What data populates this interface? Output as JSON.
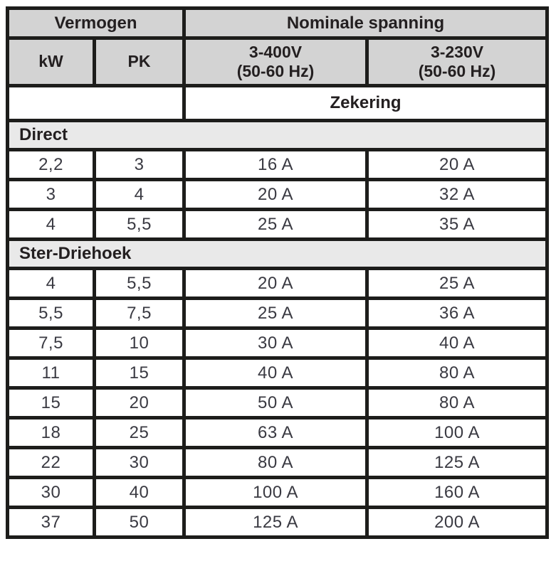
{
  "table": {
    "header": {
      "power_group": "Vermogen",
      "voltage_group": "Nominale spanning",
      "col_kw": "kW",
      "col_pk": "PK",
      "col_400v_line1": "3-400V",
      "col_400v_line2": "(50-60 Hz)",
      "col_230v_line1": "3-230V",
      "col_230v_line2": "(50-60 Hz)",
      "fuse_label": "Zekering"
    },
    "sections": [
      {
        "label": "Direct",
        "rows": [
          {
            "kw": "2,2",
            "pk": "3",
            "fuse_400v": "16 A",
            "fuse_230v": "20 A"
          },
          {
            "kw": "3",
            "pk": "4",
            "fuse_400v": "20 A",
            "fuse_230v": "32 A"
          },
          {
            "kw": "4",
            "pk": "5,5",
            "fuse_400v": "25 A",
            "fuse_230v": "35 A"
          }
        ]
      },
      {
        "label": "Ster-Driehoek",
        "rows": [
          {
            "kw": "4",
            "pk": "5,5",
            "fuse_400v": "20 A",
            "fuse_230v": "25 A"
          },
          {
            "kw": "5,5",
            "pk": "7,5",
            "fuse_400v": "25 A",
            "fuse_230v": "36 A"
          },
          {
            "kw": "7,5",
            "pk": "10",
            "fuse_400v": "30 A",
            "fuse_230v": "40 A"
          },
          {
            "kw": "11",
            "pk": "15",
            "fuse_400v": "40 A",
            "fuse_230v": "80 A"
          },
          {
            "kw": "15",
            "pk": "20",
            "fuse_400v": "50 A",
            "fuse_230v": "80 A"
          },
          {
            "kw": "18",
            "pk": "25",
            "fuse_400v": "63 A",
            "fuse_230v": "100 A"
          },
          {
            "kw": "22",
            "pk": "30",
            "fuse_400v": "80 A",
            "fuse_230v": "125 A"
          },
          {
            "kw": "30",
            "pk": "40",
            "fuse_400v": "100 A",
            "fuse_230v": "160 A"
          },
          {
            "kw": "37",
            "pk": "50",
            "fuse_400v": "125 A",
            "fuse_230v": "200 A"
          }
        ]
      }
    ]
  },
  "colors": {
    "header_bg": "#d3d3d3",
    "section_bg": "#e9e9e9",
    "border": "#1d1d1b",
    "text": "#231f20"
  }
}
